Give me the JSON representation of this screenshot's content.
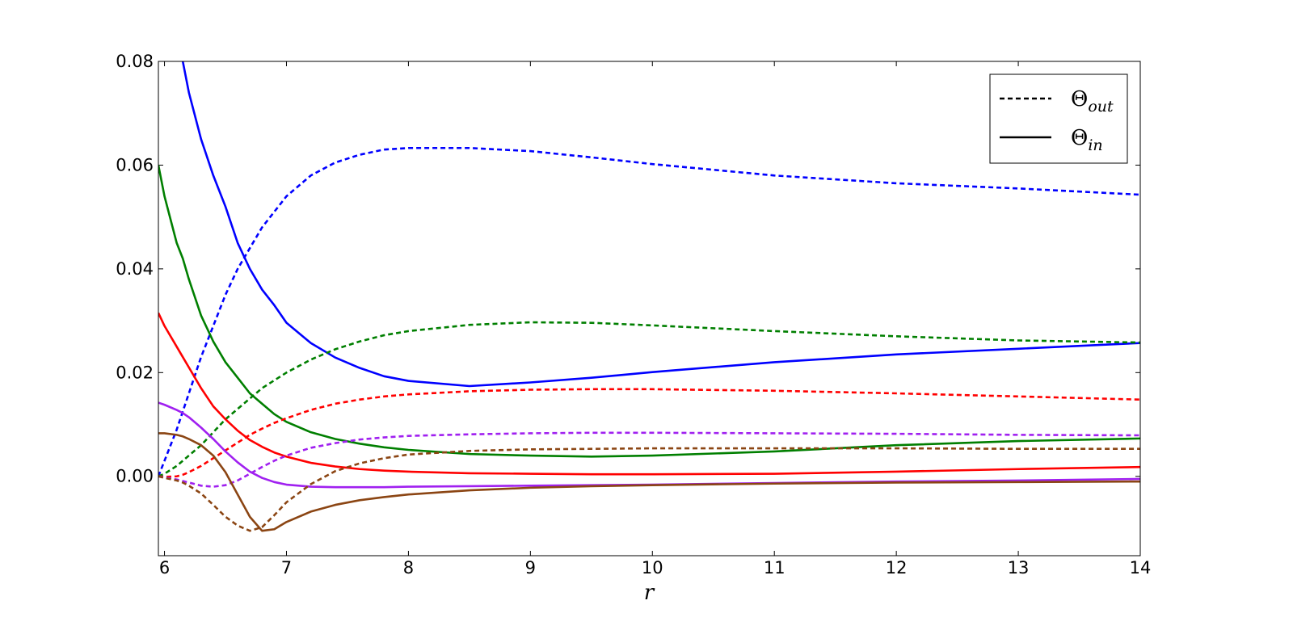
{
  "chart_data": {
    "type": "line",
    "x_label": "r",
    "xlim": [
      5.95,
      14
    ],
    "xticks": [
      6,
      7,
      8,
      9,
      10,
      11,
      12,
      13,
      14
    ],
    "ylim": [
      -0.0153,
      0.08
    ],
    "yticks": [
      {
        "value": 0,
        "label": "0.00"
      },
      0.02,
      0.04,
      0.06,
      0.08
    ],
    "legend_position": "upper right",
    "legend": [
      {
        "symbol": "Θ",
        "subscript": "out",
        "style": "dashed"
      },
      {
        "symbol": "Θ",
        "subscript": "in",
        "style": "solid"
      }
    ],
    "x": [
      5.95,
      6,
      6.1,
      6.15,
      6.2,
      6.3,
      6.4,
      6.5,
      6.6,
      6.7,
      6.8,
      6.9,
      7,
      7.2,
      7.4,
      7.6,
      7.8,
      8,
      8.5,
      9,
      9.5,
      10,
      11,
      12,
      13,
      14
    ],
    "series": [
      {
        "color": "#0000ff",
        "style": "dashed",
        "values": [
          0,
          0.003,
          0.009,
          0.0125,
          0.016,
          0.023,
          0.029,
          0.035,
          0.04,
          0.044,
          0.048,
          0.051,
          0.054,
          0.058,
          0.0605,
          0.062,
          0.063,
          0.0633,
          0.0633,
          0.0627,
          0.0615,
          0.0602,
          0.058,
          0.0565,
          0.0555,
          0.0543
        ]
      },
      {
        "color": "#0000ff",
        "style": "solid",
        "values": [
          null,
          null,
          null,
          0.08,
          0.074,
          0.065,
          0.058,
          0.052,
          0.045,
          0.04,
          0.036,
          0.033,
          0.0296,
          0.0257,
          0.0229,
          0.0209,
          0.0193,
          0.0184,
          0.0174,
          0.0181,
          0.019,
          0.0201,
          0.022,
          0.0235,
          0.0246,
          0.0257
        ]
      },
      {
        "color": "#007f00",
        "style": "dashed",
        "values": [
          0,
          0.0005,
          0.002,
          0.003,
          0.004,
          0.006,
          0.0085,
          0.011,
          0.013,
          0.015,
          0.017,
          0.0185,
          0.02,
          0.0225,
          0.0245,
          0.026,
          0.0272,
          0.028,
          0.0292,
          0.0297,
          0.0296,
          0.0291,
          0.028,
          0.027,
          0.0262,
          0.0258
        ]
      },
      {
        "color": "#007f00",
        "style": "solid",
        "values": [
          0.06,
          0.054,
          0.045,
          0.042,
          0.038,
          0.031,
          0.026,
          0.022,
          0.019,
          0.016,
          0.014,
          0.012,
          0.0105,
          0.0085,
          0.0072,
          0.0063,
          0.0056,
          0.0051,
          0.0043,
          0.004,
          0.0038,
          0.004,
          0.0048,
          0.006,
          0.0068,
          0.0073
        ]
      },
      {
        "color": "#ff0000",
        "style": "dashed",
        "values": [
          0,
          -0.0001,
          0,
          0.0003,
          0.0008,
          0.002,
          0.0035,
          0.005,
          0.0065,
          0.008,
          0.0092,
          0.0103,
          0.0112,
          0.0128,
          0.014,
          0.0148,
          0.0154,
          0.0158,
          0.0164,
          0.0167,
          0.0168,
          0.0168,
          0.0165,
          0.016,
          0.0154,
          0.0148
        ]
      },
      {
        "color": "#ff0000",
        "style": "solid",
        "values": [
          0.0315,
          0.029,
          0.025,
          0.023,
          0.021,
          0.017,
          0.0135,
          0.011,
          0.0088,
          0.007,
          0.0057,
          0.0046,
          0.0038,
          0.0026,
          0.0019,
          0.0014,
          0.0011,
          0.0009,
          0.0006,
          0.0005,
          0.0004,
          0.0004,
          0.0005,
          0.0009,
          0.0014,
          0.0018
        ]
      },
      {
        "color": "#a020f0",
        "style": "dashed",
        "values": [
          0,
          -0.0002,
          -0.0006,
          -0.0009,
          -0.0012,
          -0.0018,
          -0.002,
          -0.0017,
          -0.0008,
          0.0005,
          0.0018,
          0.003,
          0.004,
          0.0055,
          0.0064,
          0.0071,
          0.0075,
          0.0078,
          0.0081,
          0.0083,
          0.0084,
          0.0084,
          0.0083,
          0.0082,
          0.008,
          0.0079
        ]
      },
      {
        "color": "#a020f0",
        "style": "solid",
        "values": [
          0.0142,
          0.0138,
          0.0128,
          0.0122,
          0.0114,
          0.0094,
          0.0072,
          0.0048,
          0.0027,
          0.0009,
          -0.0003,
          -0.0011,
          -0.0016,
          -0.002,
          -0.0021,
          -0.0021,
          -0.0021,
          -0.002,
          -0.0019,
          -0.0018,
          -0.0017,
          -0.0016,
          -0.0013,
          -0.001,
          -0.0008,
          -0.0005
        ]
      },
      {
        "color": "#8b4513",
        "style": "dashed",
        "values": [
          0,
          -0.0003,
          -0.0008,
          -0.0012,
          -0.0018,
          -0.0033,
          -0.0055,
          -0.0078,
          -0.0095,
          -0.0105,
          -0.0098,
          -0.0075,
          -0.005,
          -0.0015,
          0.001,
          0.0025,
          0.0035,
          0.0042,
          0.0049,
          0.0052,
          0.0053,
          0.0054,
          0.0054,
          0.0054,
          0.0053,
          0.0053
        ]
      },
      {
        "color": "#8b4513",
        "style": "solid",
        "values": [
          0.0083,
          0.0083,
          0.008,
          0.0077,
          0.0072,
          0.006,
          0.004,
          0.0008,
          -0.0035,
          -0.0078,
          -0.0105,
          -0.0102,
          -0.0088,
          -0.0068,
          -0.0055,
          -0.0046,
          -0.004,
          -0.0035,
          -0.0027,
          -0.0022,
          -0.0019,
          -0.0017,
          -0.0014,
          -0.0012,
          -0.0011,
          -0.001
        ]
      }
    ]
  }
}
